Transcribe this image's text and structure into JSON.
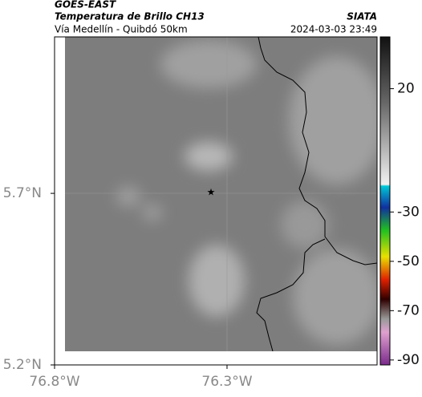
{
  "header": {
    "source": "GOES-EAST",
    "title": "Temperatura de Brillo CH13",
    "subtitle": "Vía Medellín - Quibdó 50km",
    "org": "SIATA",
    "datetime": "2024-03-03 23:49"
  },
  "map": {
    "latlim": [
      5.2,
      6.156
    ],
    "lonlim": [
      -76.8,
      -75.865
    ],
    "latticks": [
      {
        "value": 5.2,
        "label": "5.2°N"
      },
      {
        "value": 5.7,
        "label": "5.7°N"
      }
    ],
    "lonticks": [
      {
        "value": -76.8,
        "label": "76.8°W"
      },
      {
        "value": -76.3,
        "label": "76.3°W"
      }
    ]
  },
  "colorbar": {
    "lim": [
      -92,
      41
    ],
    "ticks": [
      20,
      -30,
      -50,
      -70,
      -90
    ]
  }
}
